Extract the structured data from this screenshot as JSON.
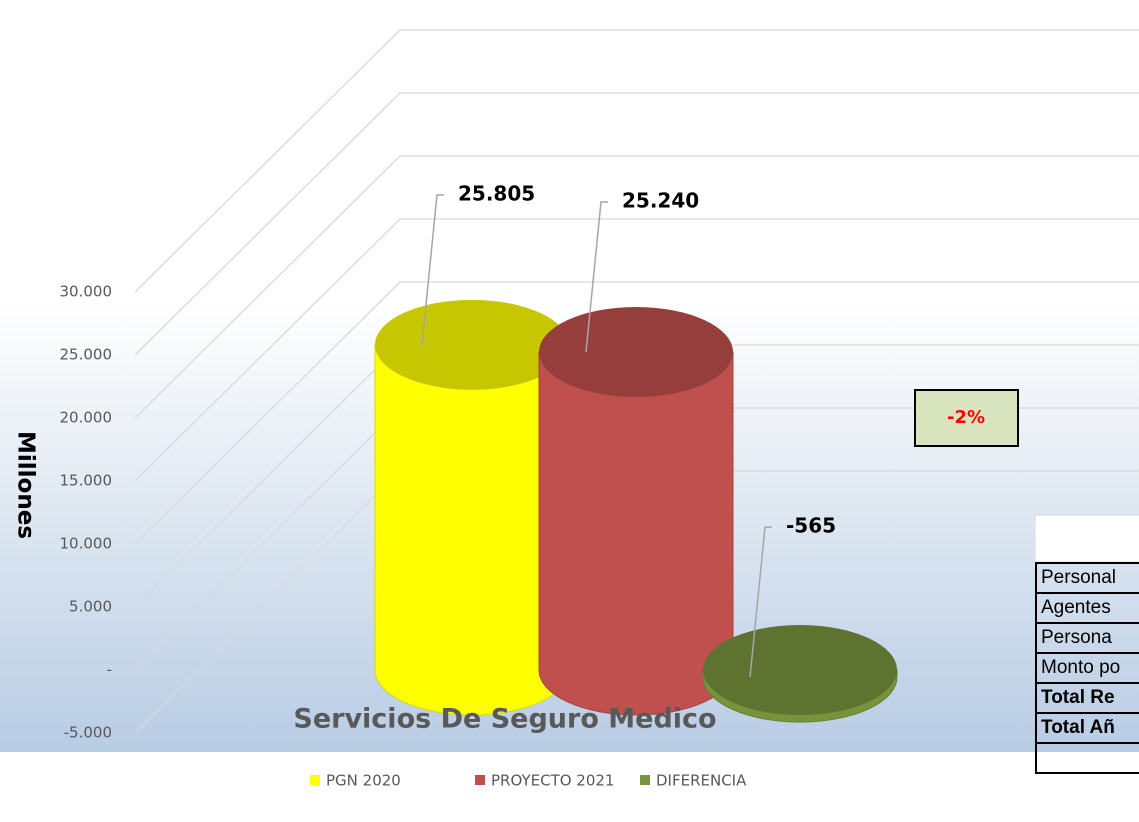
{
  "chart_data": {
    "type": "bar",
    "title": "Servicios De Seguro Medico",
    "y_label": "Millones",
    "categories": [
      "Servicios De Seguro Medico"
    ],
    "series": [
      {
        "name": "PGN 2020",
        "color": "#ffff00",
        "values": [
          25805
        ],
        "value_labels": [
          "25.805"
        ]
      },
      {
        "name": "PROYECTO 2021",
        "color": "#c0504d",
        "values": [
          25240
        ],
        "value_labels": [
          "25.240"
        ]
      },
      {
        "name": "DIFERENCIA",
        "color": "#77933c",
        "values": [
          -565
        ],
        "value_labels": [
          "-565"
        ]
      }
    ],
    "annotation": "-2%",
    "ylim": [
      -5000,
      30000
    ],
    "yticks": [
      {
        "value": -5000,
        "label": "-5.000"
      },
      {
        "value": 0,
        "label": "-"
      },
      {
        "value": 5000,
        "label": "5.000"
      },
      {
        "value": 10000,
        "label": "10.000"
      },
      {
        "value": 15000,
        "label": "15.000"
      },
      {
        "value": 20000,
        "label": "20.000"
      },
      {
        "value": 25000,
        "label": "25.000"
      },
      {
        "value": 30000,
        "label": "30.000"
      }
    ],
    "grid": true,
    "legend": "bottom"
  },
  "table": {
    "rows": [
      "Personal",
      "Agentes",
      "Persona",
      "Monto po",
      "Total Re",
      "Total Añ"
    ]
  }
}
